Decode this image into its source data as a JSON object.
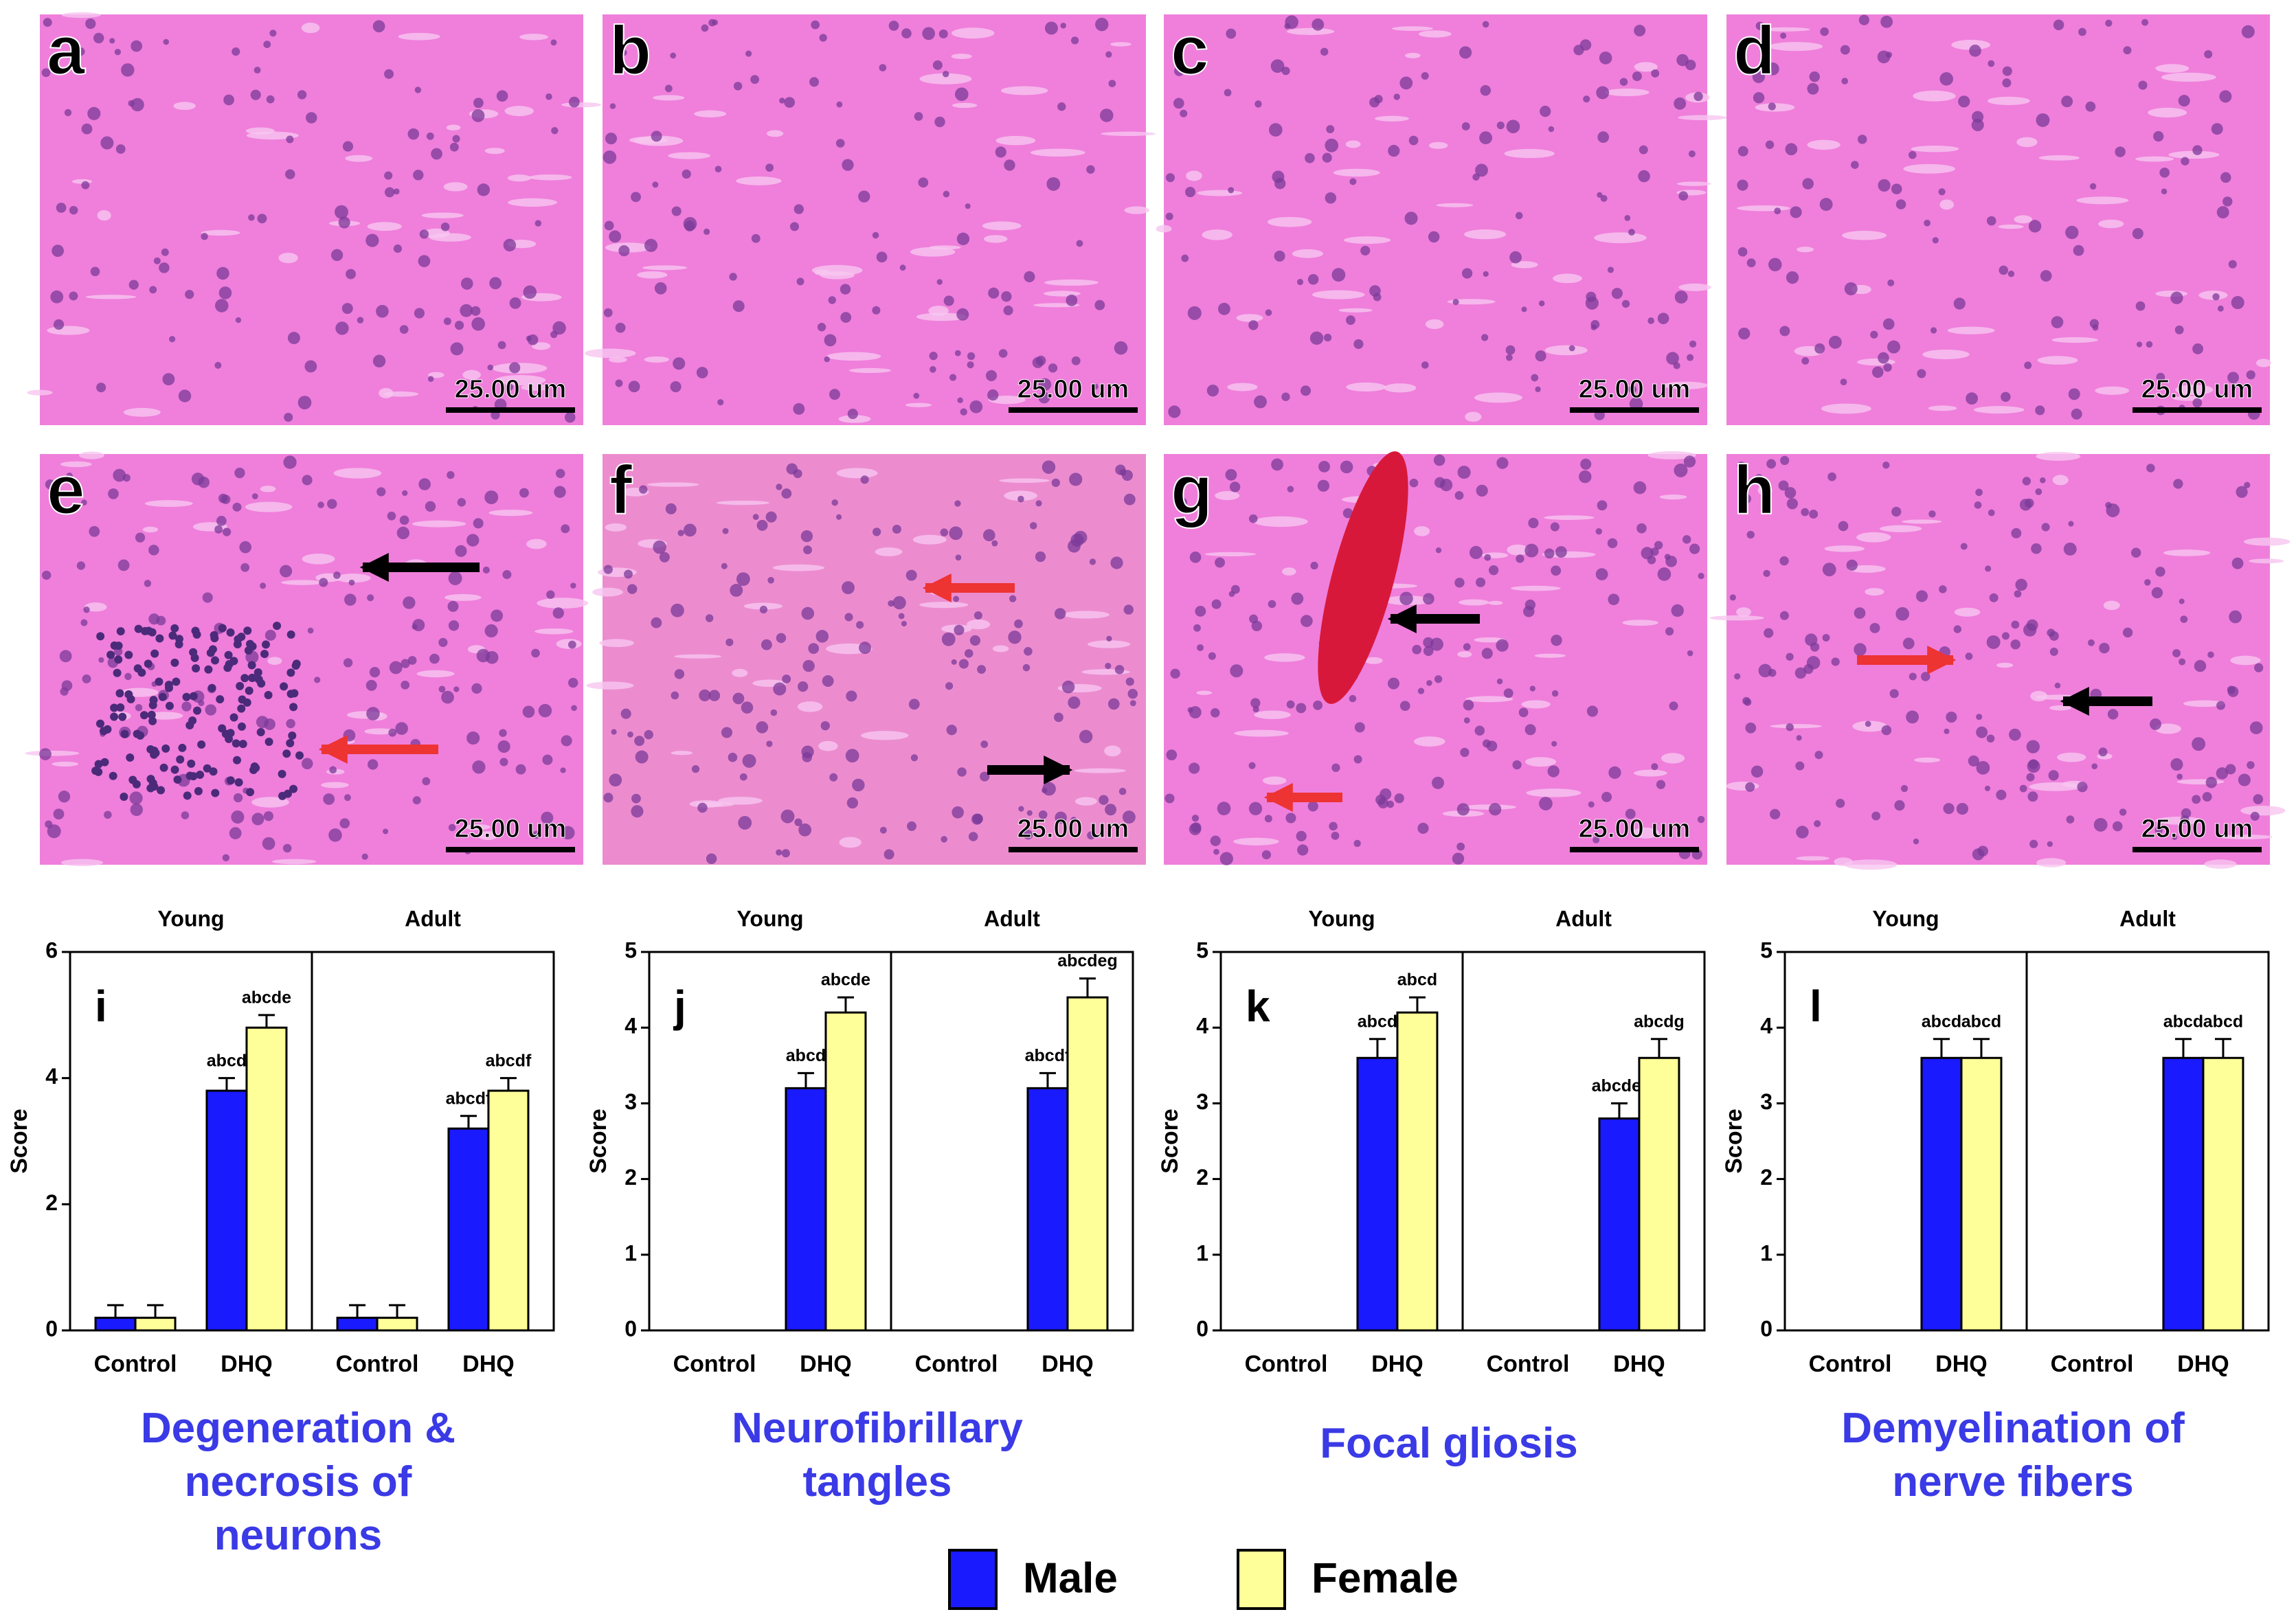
{
  "panels": [
    {
      "label": "a",
      "scale": "25.00 um"
    },
    {
      "label": "b",
      "scale": "25.00 um"
    },
    {
      "label": "c",
      "scale": "25.00 um"
    },
    {
      "label": "d",
      "scale": "25.00 um"
    },
    {
      "label": "e",
      "scale": "25.00 um"
    },
    {
      "label": "f",
      "scale": "25.00 um"
    },
    {
      "label": "g",
      "scale": "25.00 um"
    },
    {
      "label": "h",
      "scale": "25.00 um"
    }
  ],
  "legend": [
    {
      "name": "Male",
      "color": "#1a1aff"
    },
    {
      "name": "Female",
      "color": "#ffff99"
    }
  ],
  "chart_data": [
    {
      "type": "bar",
      "label": "i",
      "title": [
        "Degeneration &",
        "necrosis of",
        "neurons"
      ],
      "ylabel": "Score",
      "ylim": [
        0,
        6
      ],
      "yticks": [
        0,
        2,
        4,
        6
      ],
      "facets": [
        {
          "name": "Young",
          "categories": [
            "Control",
            "DHQ"
          ],
          "series": [
            {
              "color": "#1a1aff",
              "values": [
                0.2,
                3.8
              ],
              "errors": [
                0.2,
                0.2
              ],
              "value_labels": [
                null,
                "abcd"
              ]
            },
            {
              "color": "#ffff99",
              "values": [
                0.2,
                4.8
              ],
              "errors": [
                0.2,
                0.2
              ],
              "value_labels": [
                null,
                "abcde"
              ]
            }
          ]
        },
        {
          "name": "Adult",
          "categories": [
            "Control",
            "DHQ"
          ],
          "series": [
            {
              "color": "#1a1aff",
              "values": [
                0.2,
                3.2
              ],
              "errors": [
                0.2,
                0.2
              ],
              "value_labels": [
                null,
                "abcdf"
              ]
            },
            {
              "color": "#ffff99",
              "values": [
                0.2,
                3.8
              ],
              "errors": [
                0.2,
                0.2
              ],
              "value_labels": [
                null,
                "abcdf"
              ]
            }
          ]
        }
      ]
    },
    {
      "type": "bar",
      "label": "j",
      "title": [
        "Neurofibrillary",
        "tangles"
      ],
      "ylabel": "Score",
      "ylim": [
        0,
        5
      ],
      "yticks": [
        0,
        1,
        2,
        3,
        4,
        5
      ],
      "facets": [
        {
          "name": "Young",
          "categories": [
            "Control",
            "DHQ"
          ],
          "series": [
            {
              "color": "#1a1aff",
              "values": [
                0,
                3.2
              ],
              "errors": [
                0,
                0.2
              ],
              "value_labels": [
                null,
                "abcd"
              ]
            },
            {
              "color": "#ffff99",
              "values": [
                0,
                4.2
              ],
              "errors": [
                0,
                0.2
              ],
              "value_labels": [
                null,
                "abcde"
              ]
            }
          ]
        },
        {
          "name": "Adult",
          "categories": [
            "Control",
            "DHQ"
          ],
          "series": [
            {
              "color": "#1a1aff",
              "values": [
                0,
                3.2
              ],
              "errors": [
                0,
                0.2
              ],
              "value_labels": [
                null,
                "abcdf"
              ]
            },
            {
              "color": "#ffff99",
              "values": [
                0,
                4.4
              ],
              "errors": [
                0,
                0.25
              ],
              "value_labels": [
                null,
                "abcdeg"
              ]
            }
          ]
        }
      ]
    },
    {
      "type": "bar",
      "label": "k",
      "title": [
        "Focal gliosis"
      ],
      "ylabel": "Score",
      "ylim": [
        0,
        5
      ],
      "yticks": [
        0,
        1,
        2,
        3,
        4,
        5
      ],
      "facets": [
        {
          "name": "Young",
          "categories": [
            "Control",
            "DHQ"
          ],
          "series": [
            {
              "color": "#1a1aff",
              "values": [
                0,
                3.6
              ],
              "errors": [
                0,
                0.25
              ],
              "value_labels": [
                null,
                "abcd"
              ]
            },
            {
              "color": "#ffff99",
              "values": [
                0,
                4.2
              ],
              "errors": [
                0,
                0.2
              ],
              "value_labels": [
                null,
                "abcd"
              ]
            }
          ]
        },
        {
          "name": "Adult",
          "categories": [
            "Control",
            "DHQ"
          ],
          "series": [
            {
              "color": "#1a1aff",
              "values": [
                0,
                2.8
              ],
              "errors": [
                0,
                0.2
              ],
              "value_labels": [
                null,
                "abcdef"
              ]
            },
            {
              "color": "#ffff99",
              "values": [
                0,
                3.6
              ],
              "errors": [
                0,
                0.25
              ],
              "value_labels": [
                null,
                "abcdg"
              ]
            }
          ]
        }
      ]
    },
    {
      "type": "bar",
      "label": "l",
      "title": [
        "Demyelination of",
        "nerve fibers"
      ],
      "ylabel": "Score",
      "ylim": [
        0,
        5
      ],
      "yticks": [
        0,
        1,
        2,
        3,
        4,
        5
      ],
      "facets": [
        {
          "name": "Young",
          "categories": [
            "Control",
            "DHQ"
          ],
          "series": [
            {
              "color": "#1a1aff",
              "values": [
                0,
                3.6
              ],
              "errors": [
                0,
                0.25
              ],
              "value_labels": [
                null,
                "abcd"
              ]
            },
            {
              "color": "#ffff99",
              "values": [
                0,
                3.6
              ],
              "errors": [
                0,
                0.25
              ],
              "value_labels": [
                null,
                "abcd"
              ]
            }
          ]
        },
        {
          "name": "Adult",
          "categories": [
            "Control",
            "DHQ"
          ],
          "series": [
            {
              "color": "#1a1aff",
              "values": [
                0,
                3.6
              ],
              "errors": [
                0,
                0.25
              ],
              "value_labels": [
                null,
                "abcd"
              ]
            },
            {
              "color": "#ffff99",
              "values": [
                0,
                3.6
              ],
              "errors": [
                0,
                0.25
              ],
              "value_labels": [
                null,
                "abcd"
              ]
            }
          ]
        }
      ]
    }
  ]
}
